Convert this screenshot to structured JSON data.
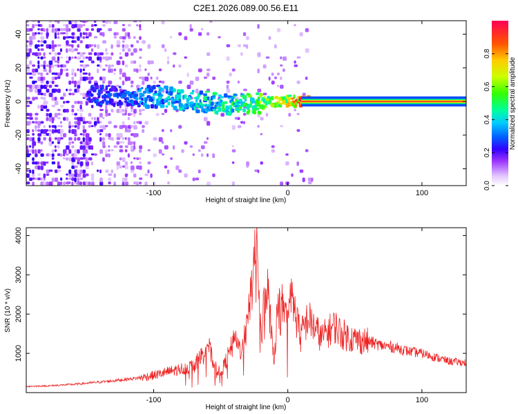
{
  "title": "C2E1.2026.089.00.56.E11",
  "chart_data": [
    {
      "type": "heatmap",
      "xlabel": "Height of straight line (km)",
      "ylabel": "Frequency (Hz)",
      "xlim": [
        -195,
        133
      ],
      "ylim": [
        -50,
        48
      ],
      "xticks": [
        -100,
        0,
        100
      ],
      "xtick_labels": [
        "-100",
        "0",
        "100"
      ],
      "yticks": [
        -40,
        -20,
        0,
        20,
        40
      ],
      "ytick_labels": [
        "-40",
        "-20",
        "0",
        "20",
        "40"
      ],
      "colorbar": {
        "label": "Normalized spectral amplitude",
        "range": [
          0,
          1
        ],
        "ticks": [
          0.0,
          0.2,
          0.4,
          0.6,
          0.8
        ],
        "tick_labels": [
          "0.0",
          "0.2",
          "0.4",
          "0.6",
          "0.8"
        ]
      },
      "ridge": [
        {
          "x": -140,
          "f": 4,
          "amp": 0.28
        },
        {
          "x": -120,
          "f": 3,
          "amp": 0.32
        },
        {
          "x": -100,
          "f": 3,
          "amp": 0.38
        },
        {
          "x": -80,
          "f": 1,
          "amp": 0.42
        },
        {
          "x": -60,
          "f": -1,
          "amp": 0.45
        },
        {
          "x": -40,
          "f": -2,
          "amp": 0.5
        },
        {
          "x": -20,
          "f": -1,
          "amp": 0.62
        },
        {
          "x": 0,
          "f": 0,
          "amp": 0.78
        },
        {
          "x": 10,
          "f": 0,
          "amp": 0.95
        },
        {
          "x": 133,
          "f": 0,
          "amp": 0.95
        }
      ]
    },
    {
      "type": "line",
      "xlabel": "Height of straight line (km)",
      "ylabel": "SNR (10 * v/v)",
      "xlim": [
        -195,
        133
      ],
      "ylim": [
        0,
        4200
      ],
      "xticks": [
        -100,
        0,
        100
      ],
      "xtick_labels": [
        "-100",
        "0",
        "100"
      ],
      "yticks": [
        1000,
        2000,
        3000,
        4000
      ],
      "ytick_labels": [
        "1000",
        "2000",
        "3000",
        "4000"
      ],
      "series": [
        {
          "name": "SNR",
          "color": "#ee2222",
          "x": [
            -195,
            -180,
            -160,
            -140,
            -125,
            -110,
            -100,
            -90,
            -80,
            -70,
            -65,
            -60,
            -55,
            -50,
            -45,
            -40,
            -35,
            -30,
            -27,
            -25,
            -24,
            -22,
            -20,
            -18,
            -15,
            -10,
            -8,
            -5,
            -3,
            0,
            3,
            5,
            8,
            10,
            15,
            20,
            25,
            30,
            35,
            40,
            50,
            60,
            70,
            80,
            90,
            100,
            110,
            120,
            133
          ],
          "values": [
            160,
            170,
            210,
            270,
            320,
            380,
            440,
            520,
            600,
            680,
            900,
            1300,
            700,
            480,
            900,
            1300,
            1100,
            1700,
            2700,
            3600,
            4100,
            3100,
            1300,
            2200,
            2600,
            800,
            2000,
            2400,
            1900,
            2000,
            2400,
            2100,
            1700,
            1500,
            1900,
            1650,
            1400,
            1550,
            1700,
            1500,
            1350,
            1300,
            1200,
            1150,
            1050,
            1000,
            900,
            800,
            760
          ]
        }
      ]
    }
  ]
}
